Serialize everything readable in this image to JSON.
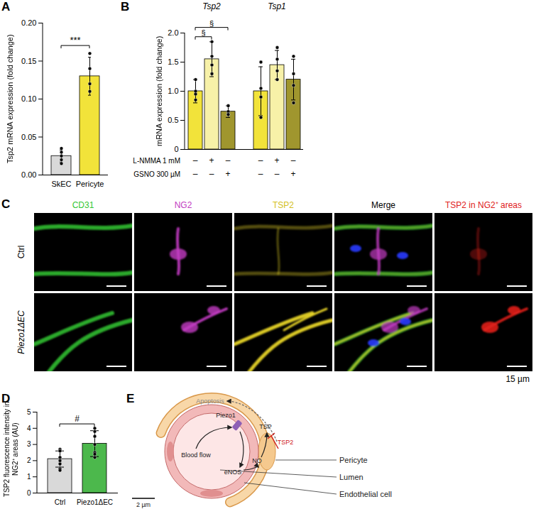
{
  "chart_data": [
    {
      "type": "bar",
      "panel": "A",
      "categories": [
        "SkEC",
        "Pericyte"
      ],
      "values": [
        0.025,
        0.13
      ],
      "errors": [
        0.008,
        0.025
      ],
      "points": [
        [
          0.015,
          0.03,
          0.02,
          0.035,
          0.025
        ],
        [
          0.16,
          0.11,
          0.12,
          0.14
        ]
      ],
      "colors": [
        "#d9d9d9",
        "#f2e33a"
      ],
      "ylabel": "Tsp2 mRNA expression (fold change)",
      "ylim": [
        0,
        0.2
      ],
      "yticks": [
        {
          "value": 0,
          "label": "0.00"
        },
        {
          "value": 0.05,
          "label": "0.05"
        },
        {
          "value": 0.1,
          "label": "0.10"
        },
        {
          "value": 0.15,
          "label": "0.15"
        },
        {
          "value": 0.2,
          "label": "0.20"
        }
      ],
      "annotations": [
        {
          "text": "***",
          "between": [
            "SkEC",
            "Pericyte"
          ]
        }
      ]
    },
    {
      "type": "bar",
      "panel": "B",
      "categories": [
        "Tsp2",
        "Tsp1"
      ],
      "series": [
        {
          "color": "#f2e33a",
          "values": [
            1.0,
            1.0
          ],
          "errors": [
            0.2,
            0.42
          ],
          "points": [
            [
              1.2,
              0.85,
              0.95,
              1.0
            ],
            [
              1.5,
              0.55,
              0.9,
              1.05
            ]
          ]
        },
        {
          "color": "#f7f1a8",
          "values": [
            1.55,
            1.45
          ],
          "errors": [
            0.3,
            0.25
          ],
          "points": [
            [
              1.85,
              1.3,
              1.6,
              1.45
            ],
            [
              1.75,
              1.2,
              1.55,
              1.35
            ]
          ]
        },
        {
          "color": "#a0962e",
          "values": [
            0.65,
            1.2
          ],
          "errors": [
            0.1,
            0.35
          ],
          "points": [
            [
              0.75,
              0.65,
              0.6,
              0.6
            ],
            [
              1.6,
              0.8,
              1.3,
              1.1
            ]
          ]
        }
      ],
      "ylabel": "mRNA expression (fold change)",
      "ylim": [
        0,
        2
      ],
      "yticks": [
        0,
        0.5,
        {
          "value": 1,
          "label": "1.0"
        },
        1.5,
        {
          "value": 2,
          "label": "2.0"
        }
      ],
      "treatments": [
        {
          "label": "L-NMMA 1 mM",
          "signs": [
            "–",
            "+",
            "–",
            "–",
            "+",
            "–"
          ]
        },
        {
          "label": "GSNO 300 µM",
          "signs": [
            "–",
            "–",
            "+",
            "–",
            "–",
            "+"
          ]
        }
      ],
      "annotations": [
        {
          "text": "§",
          "category": "Tsp2",
          "between": [
            0,
            1
          ]
        },
        {
          "text": "§",
          "category": "Tsp2",
          "between": [
            0,
            2
          ]
        }
      ]
    },
    {
      "type": "bar",
      "panel": "D",
      "categories": [
        "Ctrl",
        "Piezo1ΔEC"
      ],
      "values": [
        2.1,
        3.05
      ],
      "errors": [
        0.5,
        0.8
      ],
      "points": [
        [
          2.7,
          2.6,
          1.5,
          1.8,
          2.2,
          2.0,
          1.4,
          2.6
        ],
        [
          4.0,
          3.8,
          2.5,
          3.0,
          2.2,
          3.5,
          2.4
        ]
      ],
      "colors": [
        "#d9d9d9",
        "#4cb84c"
      ],
      "ylabel": "TSP2 fluorescence intensity in NG2⁺ areas (AU)",
      "ylim": [
        0,
        5
      ],
      "yticks": [
        0,
        1,
        2,
        3,
        4,
        5
      ],
      "annotations": [
        {
          "text": "#",
          "between": [
            "Ctrl",
            "Piezo1ΔEC"
          ]
        }
      ]
    }
  ],
  "microscopy": {
    "panel": "C",
    "columns": [
      {
        "label": "CD31",
        "color": "#33c733"
      },
      {
        "label": "NG2",
        "color": "#c23cc2"
      },
      {
        "label": "TSP2",
        "color": "#d4bf1c"
      },
      {
        "label": "Merge",
        "color": "#000000"
      },
      {
        "label": "TSP2 in NG2⁺ areas",
        "color": "#e0201b"
      }
    ],
    "rows": [
      "Ctrl",
      "Piezo1ΔEC"
    ],
    "scale_bar": "15 µm"
  },
  "diagram": {
    "panel": "E",
    "labels": {
      "apoptosis": "Apoptosis",
      "piezo1": "Piezo1",
      "blood_flow": "Blood flow",
      "enos": "eNOS",
      "no": "NO",
      "tsp": "TSP",
      "tsp2": "TSP2",
      "pericyte": "Pericyte",
      "lumen": "Lumen",
      "endothelial_cell": "Endothelial cell"
    },
    "scale_bar": "2 µm"
  }
}
